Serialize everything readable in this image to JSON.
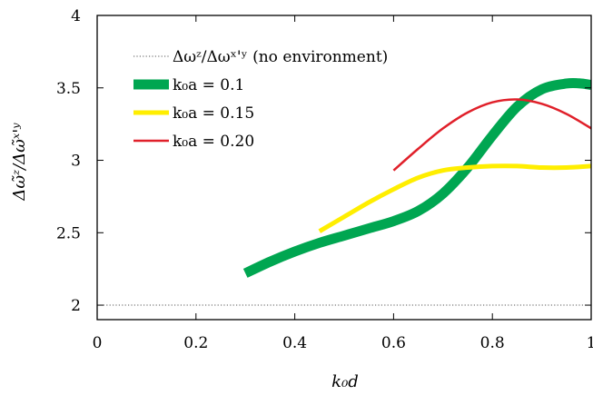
{
  "chart_data": {
    "type": "line",
    "xlabel": "k₀d",
    "ylabel": "Δω̃ᶻ/Δω̃ˣ'ʸ",
    "xlim": [
      0,
      1
    ],
    "ylim": [
      1.9,
      4
    ],
    "x_ticks": [
      0,
      0.2,
      0.4,
      0.6,
      0.8,
      1
    ],
    "x_tick_labels": [
      "0",
      "0.2",
      "0.4",
      "0.6",
      "0.8",
      "1"
    ],
    "y_ticks": [
      2,
      2.5,
      3,
      3.5,
      4
    ],
    "y_tick_labels": [
      "2",
      "2.5",
      "3",
      "3.5",
      "4"
    ],
    "grid": false,
    "legend_position": "top-left",
    "series": [
      {
        "name": "Δωᶻ/Δωˣ'ʸ (no environment)",
        "color": "#555555",
        "style": "dotted",
        "x": [
          0,
          1
        ],
        "y": [
          2.0,
          2.0
        ]
      },
      {
        "name": "k₀a = 0.1",
        "color": "#00a651",
        "style": "thick",
        "x": [
          0.3,
          0.35,
          0.4,
          0.45,
          0.5,
          0.55,
          0.6,
          0.65,
          0.7,
          0.75,
          0.8,
          0.85,
          0.9,
          0.95,
          0.98,
          1.0
        ],
        "y": [
          2.22,
          2.3,
          2.37,
          2.43,
          2.48,
          2.53,
          2.58,
          2.65,
          2.77,
          2.95,
          3.17,
          3.37,
          3.49,
          3.53,
          3.53,
          3.52
        ]
      },
      {
        "name": "k₀a = 0.15",
        "color": "#ffee00",
        "style": "medium",
        "x": [
          0.45,
          0.5,
          0.55,
          0.6,
          0.65,
          0.7,
          0.75,
          0.8,
          0.85,
          0.9,
          0.95,
          1.0
        ],
        "y": [
          2.51,
          2.61,
          2.71,
          2.8,
          2.88,
          2.93,
          2.95,
          2.96,
          2.96,
          2.95,
          2.95,
          2.96
        ]
      },
      {
        "name": "k₀a = 0.20",
        "color": "#e0202a",
        "style": "thin",
        "x": [
          0.6,
          0.65,
          0.7,
          0.75,
          0.8,
          0.85,
          0.9,
          0.95,
          1.0
        ],
        "y": [
          2.93,
          3.08,
          3.22,
          3.33,
          3.4,
          3.42,
          3.39,
          3.32,
          3.22
        ]
      }
    ]
  }
}
